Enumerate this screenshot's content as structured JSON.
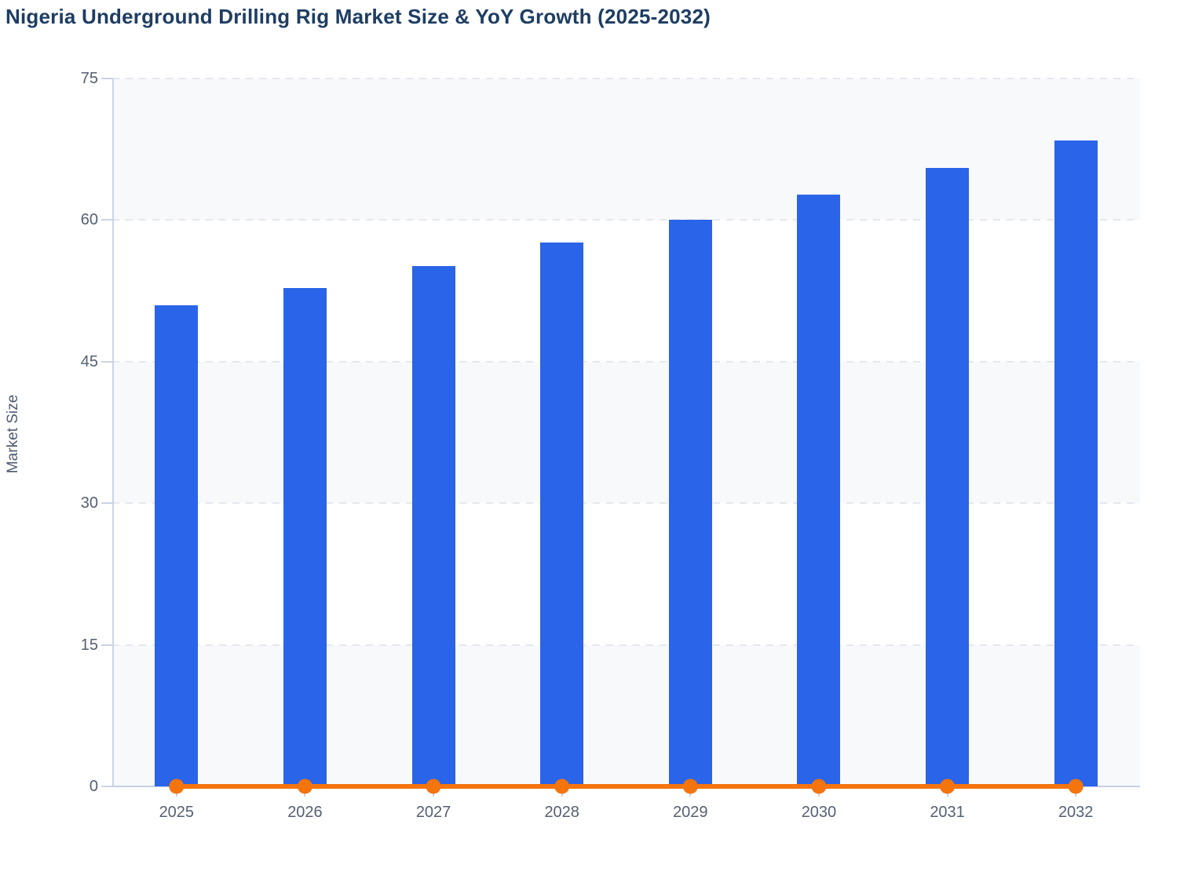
{
  "chart_data": {
    "type": "bar",
    "title": "Nigeria Underground Drilling Rig Market Size & YoY Growth (2025-2032)",
    "ylabel": "Market Size",
    "xlabel": "",
    "categories": [
      "2025",
      "2026",
      "2027",
      "2028",
      "2029",
      "2030",
      "2031",
      "2032"
    ],
    "series": [
      {
        "name": "Market Size",
        "type": "bar",
        "color": "#2a64e8",
        "values": [
          51.0,
          52.8,
          55.1,
          57.6,
          60.0,
          62.7,
          65.5,
          68.4
        ]
      },
      {
        "name": "YoY Growth",
        "type": "line",
        "color": "#f4740e",
        "values": [
          0,
          0,
          0,
          0,
          0,
          0,
          0,
          0
        ]
      }
    ],
    "ylim": [
      0,
      75
    ],
    "yticks": [
      0,
      15,
      30,
      45,
      60,
      75
    ],
    "grid": "horizontal-dashed",
    "legend_position": "none",
    "plot_background": "alternating horizontal bands"
  },
  "theme": {
    "background": "#ffffff",
    "title_color": "#1e3d63",
    "tick_label_color": "#555f74",
    "axis_title_color": "#4e5a70",
    "axis_line_color": "#ccd3e6",
    "baseline_color": "#c7cfe3",
    "grid_color": "#e4e7ed",
    "band_color": "#f8f9fb",
    "bar_color": "#2a64e8",
    "line_color": "#f4740e"
  }
}
